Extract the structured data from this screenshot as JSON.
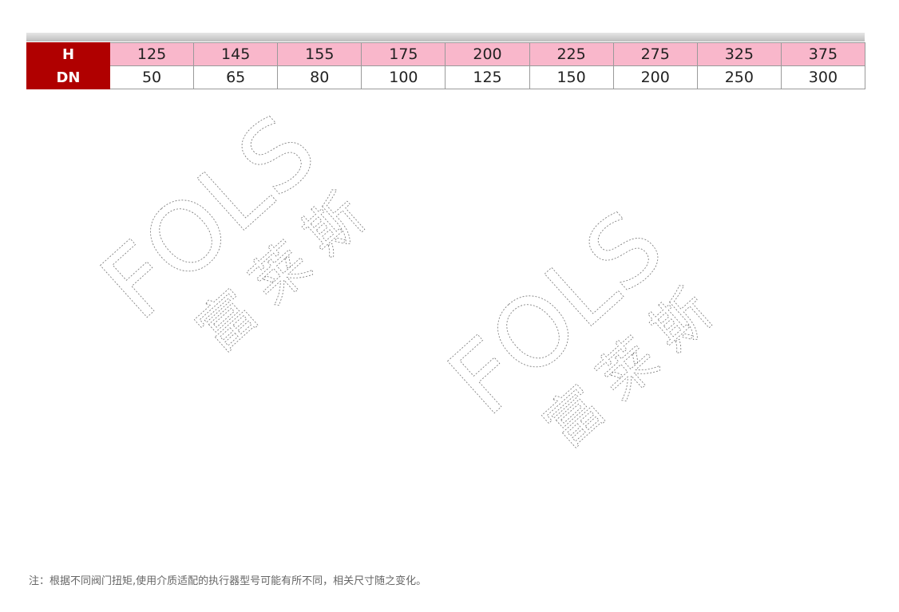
{
  "table": {
    "rows": [
      {
        "label": "H",
        "values": [
          "125",
          "145",
          "155",
          "175",
          "200",
          "225",
          "275",
          "325",
          "375"
        ]
      },
      {
        "label": "DN",
        "values": [
          "50",
          "65",
          "80",
          "100",
          "125",
          "150",
          "200",
          "250",
          "300"
        ]
      }
    ]
  },
  "watermark": {
    "latin": "FOLS",
    "chinese": "富莱斯"
  },
  "note": "注：根据不同阀门扭矩,使用介质适配的执行器型号可能有所不同，相关尺寸随之变化。",
  "colors": {
    "header_cell": "#b00000",
    "h_row": "#f9b7cb"
  }
}
